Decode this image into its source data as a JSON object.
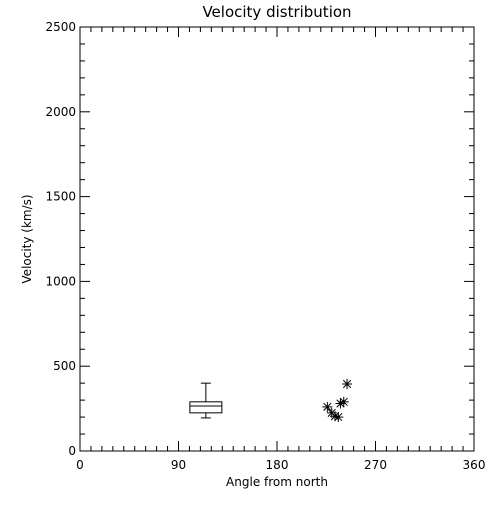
{
  "chart_data": {
    "type": "scatter",
    "title": "Velocity distribution",
    "xlabel": "Angle from north",
    "ylabel": "Velocity (km/s)",
    "xlim": [
      0,
      360
    ],
    "ylim": [
      0,
      2500
    ],
    "xticks": [
      0,
      90,
      180,
      270,
      360
    ],
    "yticks": [
      0,
      500,
      1000,
      1500,
      2000,
      2500
    ],
    "grid": false,
    "boxplot": {
      "x": 115,
      "whisker_low": 195,
      "q1": 225,
      "median": 265,
      "q3": 290,
      "whisker_high": 400
    },
    "points": [
      {
        "x": 226,
        "y": 260
      },
      {
        "x": 230,
        "y": 225
      },
      {
        "x": 233,
        "y": 205
      },
      {
        "x": 236,
        "y": 200
      },
      {
        "x": 238,
        "y": 280
      },
      {
        "x": 241,
        "y": 290
      },
      {
        "x": 244,
        "y": 395
      }
    ]
  }
}
